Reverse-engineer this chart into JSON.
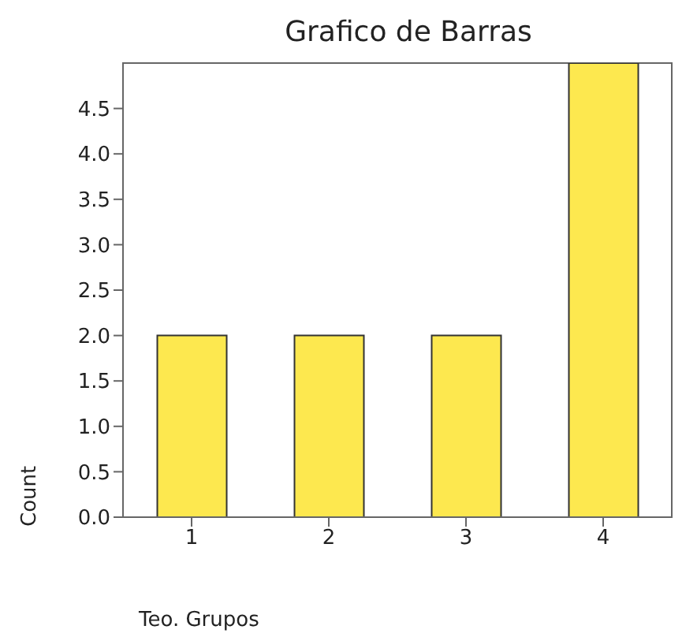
{
  "chart_data": {
    "type": "bar",
    "title": "Grafico de Barras",
    "xlabel": "Teo. Grupos",
    "ylabel": "Count",
    "categories": [
      "1",
      "2",
      "3",
      "4"
    ],
    "values": [
      2,
      2,
      2,
      5
    ],
    "color": "#fde84f",
    "ylim": [
      0,
      5
    ],
    "yticks": [
      {
        "value": 0,
        "label": "0.0"
      },
      {
        "value": 0.5,
        "label": "0.5"
      },
      {
        "value": 1,
        "label": "1.0"
      },
      {
        "value": 1.5,
        "label": "1.5"
      },
      {
        "value": 2,
        "label": "2.0"
      },
      {
        "value": 2.5,
        "label": "2.5"
      },
      {
        "value": 3,
        "label": "3.0"
      },
      {
        "value": 3.5,
        "label": "3.5"
      },
      {
        "value": 4,
        "label": "4.0"
      },
      {
        "value": 4.5,
        "label": "4.5"
      }
    ],
    "grid": false,
    "legend": false
  }
}
